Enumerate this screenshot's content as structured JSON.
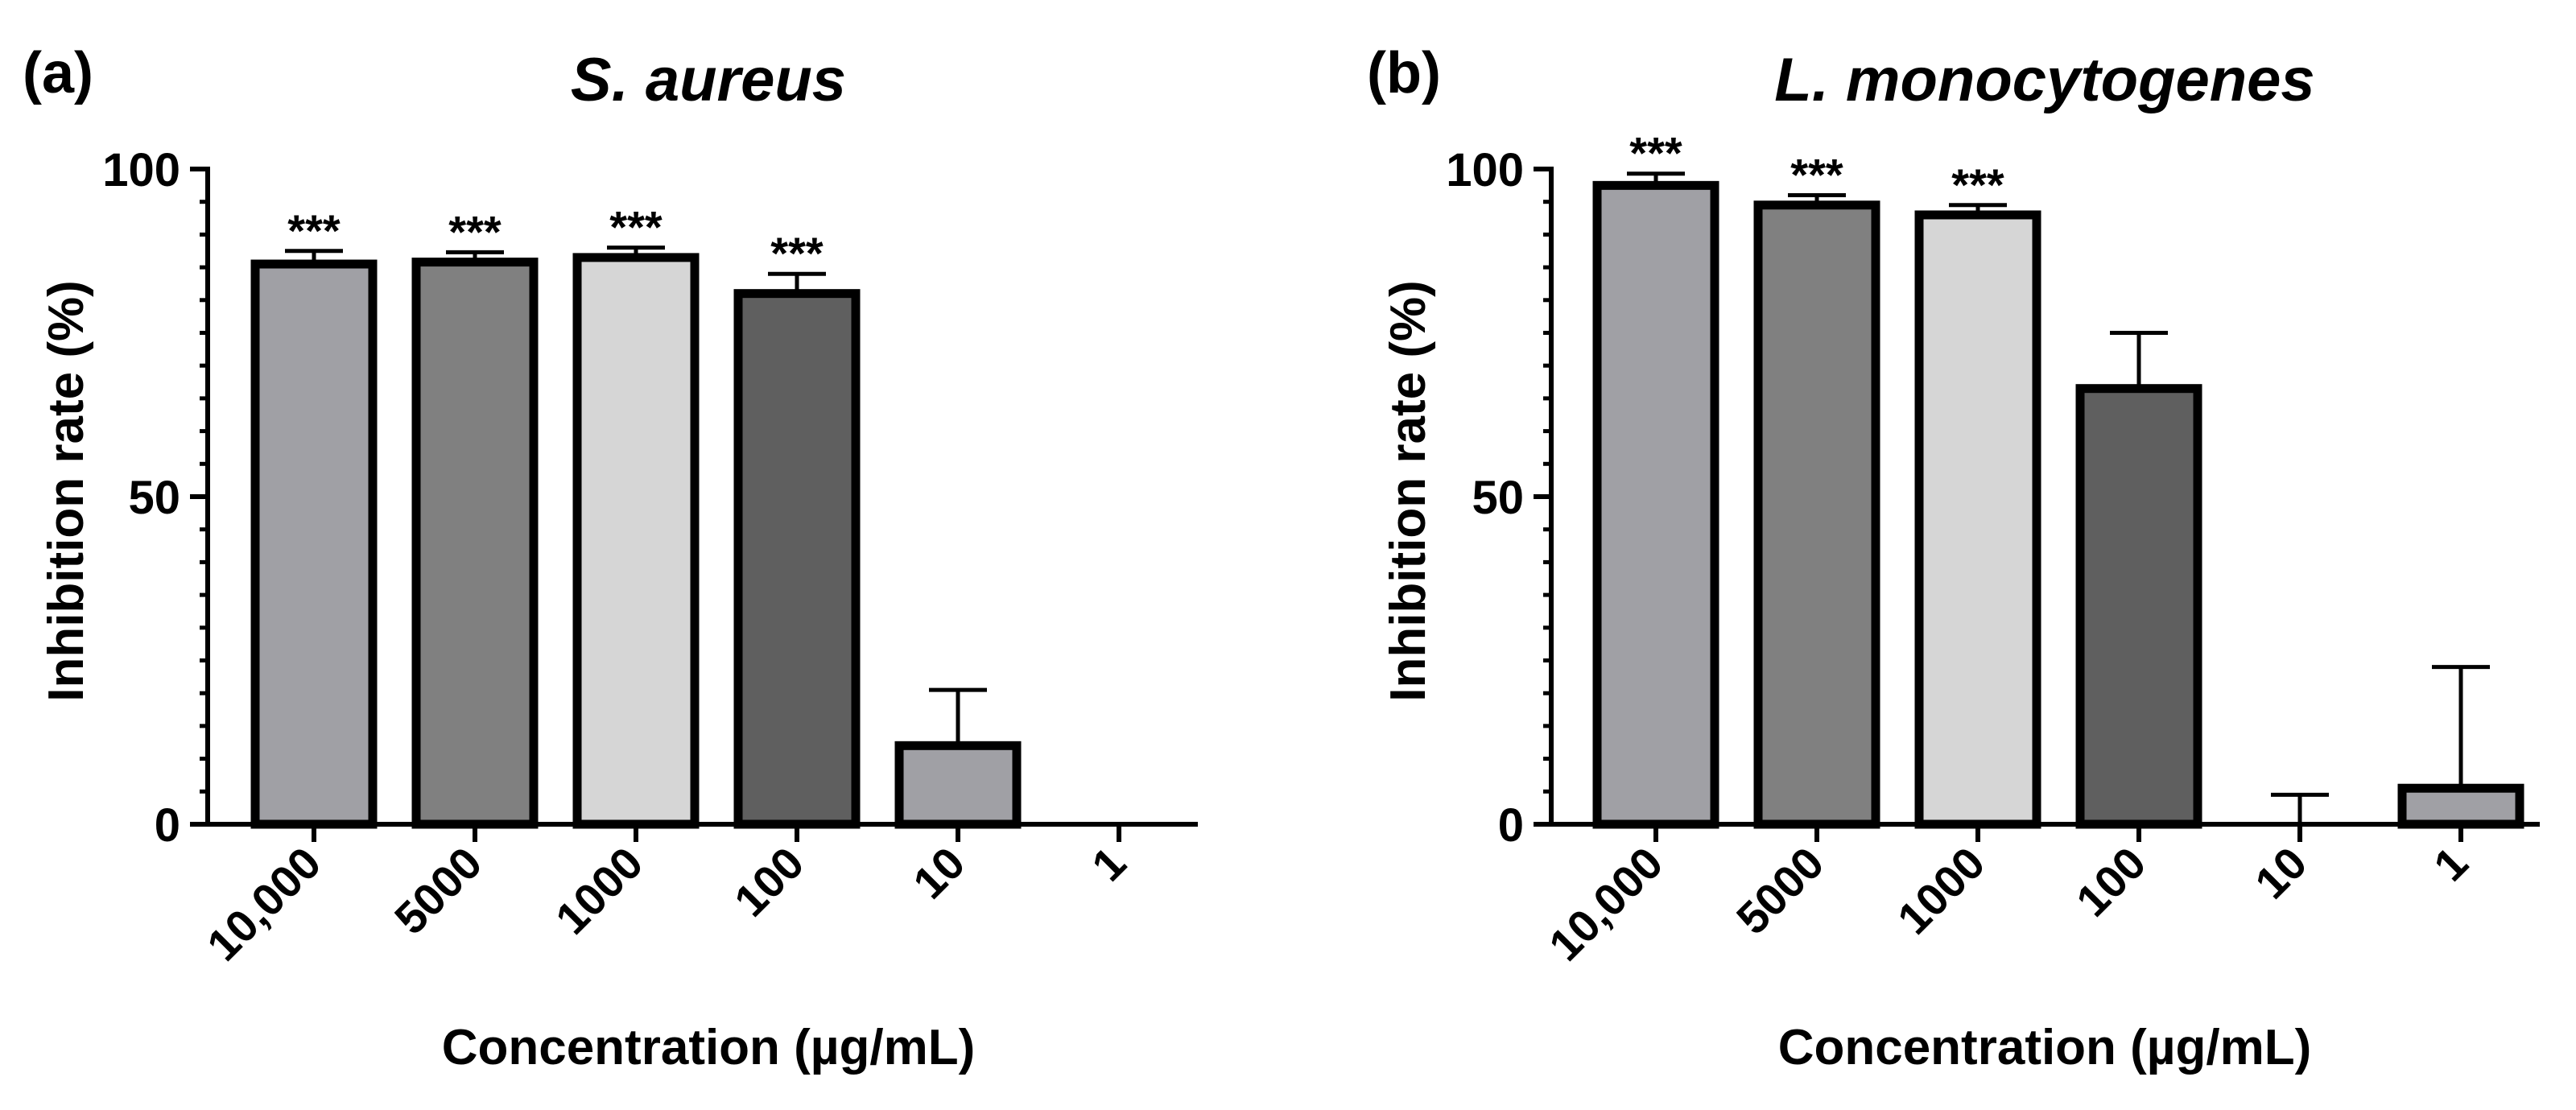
{
  "chart_data": [
    {
      "type": "bar",
      "panel_label": "(a)",
      "title": "S. aureus",
      "xlabel": "Concentration (µg/mL)",
      "ylabel": "Inhibition rate (%)",
      "ylim": [
        0,
        100
      ],
      "yticks": [
        "0",
        "50",
        "100"
      ],
      "categories": [
        "10,000",
        "5000",
        "1000",
        "100",
        "10",
        "1"
      ],
      "values": [
        85.5,
        85.8,
        86.5,
        81,
        12,
        0
      ],
      "errors": [
        2,
        1.5,
        1.5,
        3,
        8.5,
        0
      ],
      "significance": [
        "***",
        "***",
        "***",
        "***",
        "",
        ""
      ],
      "colors": [
        "#a0a0a5",
        "#808080",
        "#d6d6d6",
        "#5f5f5f",
        "#a0a0a5",
        "#a0a0a5"
      ]
    },
    {
      "type": "bar",
      "panel_label": "(b)",
      "title": "L. monocytogenes",
      "xlabel": "Concentration (µg/mL)",
      "ylabel": "Inhibition rate (%)",
      "ylim": [
        0,
        100
      ],
      "yticks": [
        "0",
        "50",
        "100"
      ],
      "categories": [
        "10,000",
        "5000",
        "1000",
        "100",
        "10",
        "1"
      ],
      "values": [
        97.5,
        94.5,
        93,
        66.5,
        0,
        5.5
      ],
      "errors": [
        1.8,
        1.5,
        1.5,
        8.5,
        4.5,
        18.5
      ],
      "significance": [
        "***",
        "***",
        "***",
        "",
        "",
        ""
      ],
      "colors": [
        "#a0a0a5",
        "#808080",
        "#d6d6d6",
        "#5f5f5f",
        "#a0a0a5",
        "#a0a0a5"
      ]
    }
  ]
}
